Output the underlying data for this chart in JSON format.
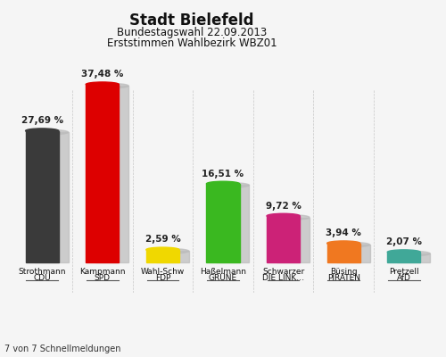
{
  "title": "Stadt Bielefeld",
  "subtitle1": "Bundestagswahl 22.09.2013",
  "subtitle2": "Erststimmen Wahlbezirk WBZ01",
  "footer": "7 von 7 Schnellmeldungen",
  "names": [
    "Strothmann",
    "Kampmann",
    "Wahl-Schw",
    "Haßelmann",
    "Schwarzer",
    "Büsing",
    "Pretzell"
  ],
  "parties": [
    "CDU",
    "SPD",
    "FDP",
    "GRÜNE",
    "DIE LINK…",
    "PIRATEN",
    "AfD"
  ],
  "values": [
    27.69,
    37.48,
    2.59,
    16.51,
    9.72,
    3.94,
    2.07
  ],
  "labels": [
    "27,69 %",
    "37,48 %",
    "2,59 %",
    "16,51 %",
    "9,72 %",
    "3,94 %",
    "2,07 %"
  ],
  "bar_colors": [
    "#3a3a3a",
    "#dd0000",
    "#f0d800",
    "#3ab820",
    "#cc2277",
    "#f07820",
    "#40a898"
  ],
  "shadow_color": "#bbbbbb",
  "background_color": "#f5f5f5",
  "title_fontsize": 12,
  "subtitle_fontsize": 8.5,
  "value_fontsize": 7.5,
  "label_fontsize": 6.5,
  "footer_fontsize": 7
}
